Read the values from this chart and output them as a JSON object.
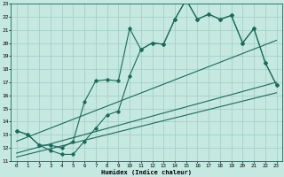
{
  "xlabel": "Humidex (Indice chaleur)",
  "bg_color": "#c5e8e0",
  "grid_color": "#9ecec4",
  "line_color": "#1a6b5a",
  "xmin": 0,
  "xmax": 23,
  "ymin": 11,
  "ymax": 23,
  "xticks": [
    0,
    1,
    2,
    3,
    4,
    5,
    6,
    7,
    8,
    9,
    10,
    11,
    12,
    13,
    14,
    15,
    16,
    17,
    18,
    19,
    20,
    21,
    22,
    23
  ],
  "yticks": [
    11,
    12,
    13,
    14,
    15,
    16,
    17,
    18,
    19,
    20,
    21,
    22,
    23
  ],
  "curve1_x": [
    0,
    1,
    2,
    3,
    4,
    5,
    6,
    7,
    8,
    9,
    10,
    11,
    12,
    13,
    14,
    15,
    16,
    17,
    18,
    19,
    20,
    21,
    22,
    23
  ],
  "curve1_y": [
    13.3,
    13.0,
    12.2,
    12.2,
    12.0,
    12.5,
    15.5,
    17.1,
    17.2,
    17.1,
    21.1,
    19.5,
    20.0,
    19.9,
    21.8,
    23.3,
    21.8,
    22.2,
    21.8,
    22.1,
    20.0,
    21.1,
    18.5,
    16.8
  ],
  "curve2_x": [
    0,
    1,
    2,
    3,
    4,
    5,
    6,
    7,
    8,
    9,
    10,
    11,
    12,
    13,
    14,
    15,
    16,
    17,
    18,
    19,
    20,
    21,
    22,
    23
  ],
  "curve2_y": [
    13.3,
    13.0,
    12.2,
    11.8,
    11.5,
    11.5,
    12.5,
    13.5,
    14.5,
    14.8,
    17.5,
    19.5,
    20.0,
    19.9,
    21.8,
    23.3,
    21.8,
    22.2,
    21.8,
    22.1,
    20.0,
    21.1,
    18.5,
    16.8
  ],
  "line1_x": [
    0,
    23
  ],
  "line1_y": [
    12.5,
    20.2
  ],
  "line2_x": [
    0,
    23
  ],
  "line2_y": [
    11.6,
    17.0
  ],
  "line3_x": [
    0,
    23
  ],
  "line3_y": [
    11.3,
    16.2
  ]
}
